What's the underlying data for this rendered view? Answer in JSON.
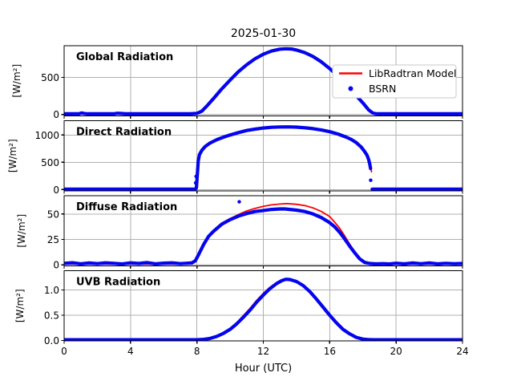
{
  "figure": {
    "title": "2025-01-30",
    "xlabel": "Hour (UTC)"
  },
  "colors": {
    "model_red": "#ff0000",
    "bsrn_blue": "#0404ee",
    "panel_label_orange": "#ffa500",
    "grid_gray": "#b0b0b0",
    "axis_black": "#000000",
    "legend_border": "#c9c9c9",
    "background": "#ffffff"
  },
  "legend": {
    "position": "upper-right-of-first-panel",
    "entries": [
      {
        "label": "LibRadtran Model",
        "marker": "line",
        "color_key": "model_red"
      },
      {
        "label": "BSRN",
        "marker": "dot",
        "color_key": "bsrn_blue"
      }
    ]
  },
  "x_axis": {
    "label": "Hour (UTC)",
    "range": [
      0,
      24
    ],
    "ticks": [
      0,
      4,
      8,
      12,
      16,
      20,
      24
    ],
    "tick_labels": [
      "0",
      "4",
      "8",
      "12",
      "16",
      "20",
      "24"
    ],
    "grid": true
  },
  "chart_data": [
    {
      "type": "line",
      "panel_label": "Global Radiation",
      "ylabel": "[W/m²]",
      "ylim": [
        -20,
        929
      ],
      "yticks": [
        0,
        500
      ],
      "ytick_labels": [
        "0",
        "500"
      ],
      "grid": true,
      "series": [
        {
          "name": "LibRadtran Model",
          "color_key": "model_red",
          "width": 1.8,
          "x": [
            0,
            7.6,
            8.0,
            8.5,
            9.0,
            10.0,
            11.0,
            12.0,
            13.0,
            13.35,
            14.0,
            15.0,
            16.0,
            17.0,
            18.0,
            18.6,
            19.0,
            24.0
          ],
          "y": [
            5,
            5,
            12,
            95,
            212,
            462,
            670,
            812,
            881,
            887,
            869,
            782,
            619,
            399,
            154,
            15,
            5,
            5
          ]
        },
        {
          "name": "BSRN",
          "color_key": "bsrn_blue",
          "width": 4.2,
          "x": [
            0,
            0.9,
            1.05,
            1.2,
            1.4,
            3.0,
            3.2,
            3.45,
            3.7,
            7.6,
            8.0,
            8.3,
            8.6,
            9.0,
            9.5,
            10.0,
            10.5,
            11.0,
            11.5,
            12.0,
            12.5,
            13.0,
            13.35,
            13.7,
            14.0,
            14.5,
            15.0,
            15.5,
            16.0,
            16.5,
            17.0,
            17.5,
            18.0,
            18.35,
            18.6,
            18.8,
            19.0,
            24.0
          ],
          "y": [
            8,
            8,
            20,
            14,
            8,
            8,
            16,
            12,
            8,
            8,
            14,
            45,
            115,
            215,
            345,
            465,
            578,
            672,
            752,
            814,
            857,
            882,
            888,
            884,
            870,
            836,
            783,
            710,
            620,
            516,
            400,
            277,
            155,
            60,
            18,
            9,
            8,
            8
          ]
        }
      ],
      "extra_points": []
    },
    {
      "type": "line",
      "panel_label": "Direct Radiation",
      "ylabel": "[W/m²]",
      "ylim": [
        -25,
        1262
      ],
      "yticks": [
        0,
        500,
        1000
      ],
      "ytick_labels": [
        "0",
        "500",
        "1000"
      ],
      "grid": true,
      "series": [
        {
          "name": "LibRadtran Model",
          "color_key": "model_red",
          "width": 1.8,
          "x": [
            0,
            7.9,
            7.98,
            8.05,
            8.2,
            8.5,
            9.0,
            10.0,
            11.0,
            12.0,
            13.0,
            13.5,
            14.0,
            15.0,
            16.0,
            17.0,
            17.6,
            18.0,
            18.2,
            18.35,
            18.45,
            18.52,
            null,
            18.6,
            19.0,
            24.0
          ],
          "y": [
            5,
            5,
            150,
            560,
            690,
            788,
            872,
            1000,
            1082,
            1128,
            1148,
            1149,
            1144,
            1116,
            1060,
            960,
            858,
            742,
            640,
            548,
            430,
            325,
            null,
            5,
            5,
            5
          ]
        },
        {
          "name": "BSRN",
          "color_key": "bsrn_blue",
          "width": 4.2,
          "x": [
            0,
            7.9,
            7.97,
            8.02,
            8.08,
            8.15,
            8.3,
            8.5,
            8.8,
            9.2,
            9.6,
            10.0,
            10.5,
            11.0,
            11.5,
            12.0,
            12.5,
            13.0,
            13.5,
            14.0,
            14.5,
            15.0,
            15.5,
            16.0,
            16.5,
            17.0,
            17.3,
            17.6,
            17.9,
            18.1,
            18.25,
            18.35,
            18.42,
            18.46,
            null,
            18.56,
            19.0,
            24.0
          ],
          "y": [
            6,
            6,
            30,
            260,
            520,
            640,
            720,
            790,
            855,
            915,
            960,
            1000,
            1045,
            1082,
            1108,
            1128,
            1141,
            1148,
            1149,
            1144,
            1133,
            1116,
            1092,
            1060,
            1018,
            960,
            918,
            860,
            778,
            698,
            630,
            545,
            460,
            385,
            null,
            6,
            6,
            6
          ]
        }
      ],
      "extra_points": [
        [
          7.92,
          122
        ],
        [
          7.95,
          240
        ],
        [
          18.47,
          170
        ]
      ]
    },
    {
      "type": "line",
      "panel_label": "Diffuse Radiation",
      "ylabel": "[W/m²]",
      "ylim": [
        -1,
        68
      ],
      "yticks": [
        0,
        25,
        50
      ],
      "ytick_labels": [
        "0",
        "25",
        "50"
      ],
      "grid": true,
      "series": [
        {
          "name": "LibRadtran Model",
          "color_key": "model_red",
          "width": 1.8,
          "x": [
            0,
            7.7,
            7.9,
            8.1,
            8.4,
            8.7,
            9.0,
            9.5,
            10.0,
            10.5,
            11.0,
            11.5,
            12.0,
            12.5,
            13.0,
            13.4,
            14.0,
            14.5,
            15.0,
            15.5,
            16.0,
            16.3,
            16.6,
            16.9,
            17.2,
            17.5,
            17.8,
            18.1,
            18.4,
            18.8,
            24.0
          ],
          "y": [
            0.8,
            0.8,
            4.0,
            10.5,
            20.5,
            28.5,
            34,
            41,
            45.5,
            49.5,
            53,
            55.5,
            57.5,
            59,
            59.8,
            60.3,
            59.6,
            58.3,
            56,
            52.5,
            47.5,
            42,
            36,
            28.5,
            20.5,
            12.8,
            6.3,
            2.8,
            1.0,
            0.7,
            0.7
          ]
        },
        {
          "name": "BSRN",
          "color_key": "bsrn_blue",
          "width": 4.2,
          "x": [
            0,
            0.5,
            1.0,
            1.5,
            2.0,
            2.5,
            3.0,
            3.5,
            4.0,
            4.5,
            5.0,
            5.5,
            6.0,
            6.5,
            7.0,
            7.4,
            7.7,
            7.9,
            8.1,
            8.4,
            8.7,
            9.0,
            9.5,
            10.0,
            10.5,
            11.0,
            11.5,
            12.0,
            12.5,
            13.0,
            13.3,
            13.6,
            14.0,
            14.5,
            15.0,
            15.5,
            16.0,
            16.3,
            16.6,
            16.9,
            17.2,
            17.5,
            17.8,
            18.1,
            18.4,
            18.8,
            19.2,
            19.6,
            20.0,
            20.5,
            21.0,
            21.5,
            22.0,
            22.5,
            23.0,
            23.5,
            24.0
          ],
          "y": [
            1.5,
            2.1,
            1.0,
            1.8,
            1.2,
            2.0,
            1.5,
            0.9,
            2.0,
            1.4,
            2.2,
            1.0,
            1.7,
            2.0,
            1.2,
            1.6,
            2.0,
            4.0,
            10,
            20,
            28,
            33,
            40,
            44.5,
            48,
            50.5,
            52.5,
            53.5,
            54.5,
            55,
            55,
            54.5,
            53.8,
            52.5,
            50,
            46.5,
            41.5,
            37.5,
            32,
            25.5,
            18.5,
            12,
            6,
            2.5,
            1.4,
            1.0,
            1.2,
            0.9,
            1.6,
            1.0,
            1.8,
            1.1,
            1.9,
            1.0,
            1.5,
            1.1,
            1.4
          ]
        }
      ],
      "extra_points": [
        [
          10.55,
          62
        ]
      ]
    },
    {
      "type": "line",
      "panel_label": "UVB Radiation",
      "ylabel": "[W/m²]",
      "ylim": [
        -0.01,
        1.385
      ],
      "yticks": [
        0,
        0.5,
        1.0
      ],
      "ytick_labels": [
        "0.0",
        "0.5",
        "1.0"
      ],
      "grid": true,
      "series": [
        {
          "name": "LibRadtran Model",
          "color_key": "model_red",
          "width": 1.8,
          "x": [
            0,
            8.0,
            8.4,
            8.8,
            9.2,
            9.6,
            10.0,
            10.4,
            10.8,
            11.2,
            11.6,
            12.0,
            12.4,
            12.8,
            13.1,
            13.35,
            13.6,
            14.0,
            14.4,
            14.8,
            15.2,
            15.6,
            16.0,
            16.4,
            16.8,
            17.2,
            17.6,
            18.0,
            18.3,
            18.6,
            24.0
          ],
          "y": [
            0.008,
            0.008,
            0.022,
            0.045,
            0.09,
            0.155,
            0.24,
            0.355,
            0.49,
            0.635,
            0.795,
            0.935,
            1.055,
            1.15,
            1.195,
            1.22,
            1.21,
            1.17,
            1.09,
            0.97,
            0.82,
            0.66,
            0.5,
            0.35,
            0.22,
            0.13,
            0.06,
            0.025,
            0.012,
            0.008,
            0.008
          ],
          "note": "model slightly above BSRN on morning rise"
        },
        {
          "name": "BSRN",
          "color_key": "bsrn_blue",
          "width": 4.2,
          "x": [
            0,
            8.0,
            8.4,
            8.8,
            9.2,
            9.6,
            10.0,
            10.4,
            10.8,
            11.2,
            11.6,
            12.0,
            12.4,
            12.8,
            13.1,
            13.35,
            13.6,
            14.0,
            14.4,
            14.8,
            15.2,
            15.6,
            16.0,
            16.4,
            16.8,
            17.2,
            17.6,
            18.0,
            18.3,
            18.6,
            24.0
          ],
          "y": [
            0.012,
            0.012,
            0.02,
            0.04,
            0.08,
            0.14,
            0.22,
            0.33,
            0.46,
            0.6,
            0.76,
            0.9,
            1.03,
            1.13,
            1.185,
            1.215,
            1.21,
            1.17,
            1.09,
            0.97,
            0.82,
            0.66,
            0.5,
            0.35,
            0.22,
            0.13,
            0.06,
            0.025,
            0.015,
            0.012,
            0.012
          ]
        }
      ],
      "extra_points": []
    }
  ]
}
